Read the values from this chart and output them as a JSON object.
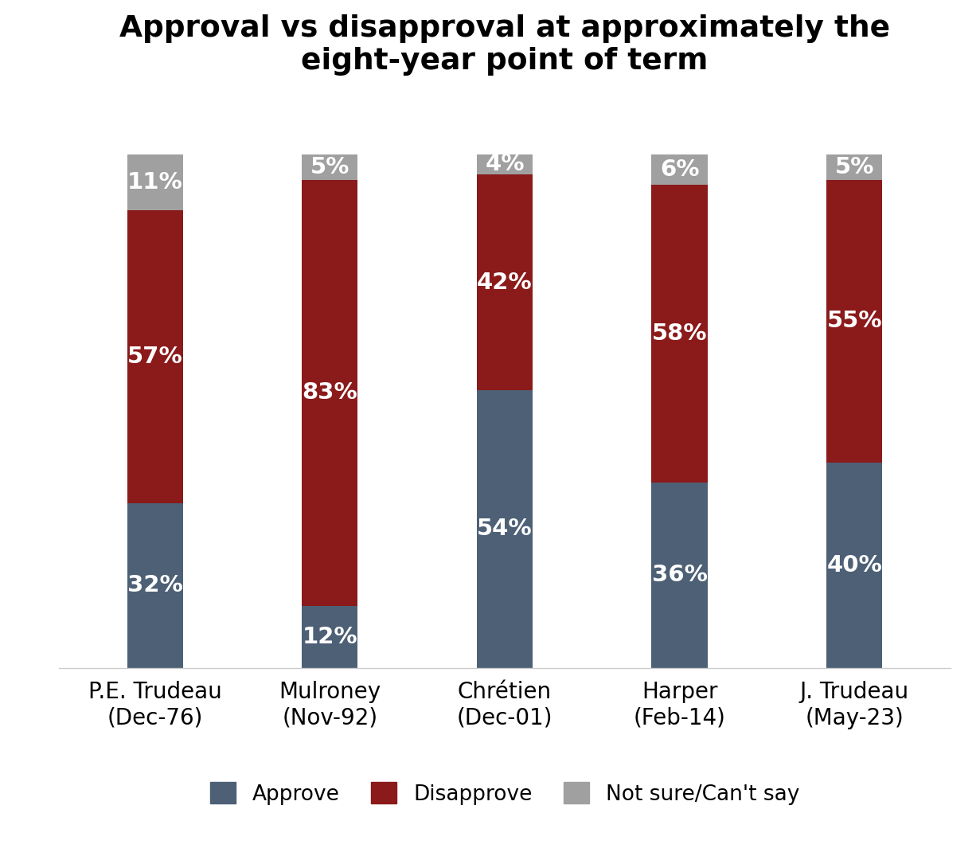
{
  "title": "Approval vs disapproval at approximately the\neight-year point of term",
  "categories": [
    "P.E. Trudeau\n(Dec-76)",
    "Mulroney\n(Nov-92)",
    "Chrétien\n(Dec-01)",
    "Harper\n(Feb-14)",
    "J. Trudeau\n(May-23)"
  ],
  "approve": [
    32,
    12,
    54,
    36,
    40
  ],
  "disapprove": [
    57,
    83,
    42,
    58,
    55
  ],
  "not_sure": [
    11,
    5,
    4,
    6,
    5
  ],
  "approve_color": "#4d6076",
  "disapprove_color": "#8b1a1a",
  "not_sure_color": "#a0a0a0",
  "bar_width": 0.32,
  "title_fontsize": 27,
  "label_fontsize": 21,
  "tick_fontsize": 20,
  "legend_fontsize": 19,
  "figsize": [
    12.31,
    10.75
  ],
  "dpi": 100
}
